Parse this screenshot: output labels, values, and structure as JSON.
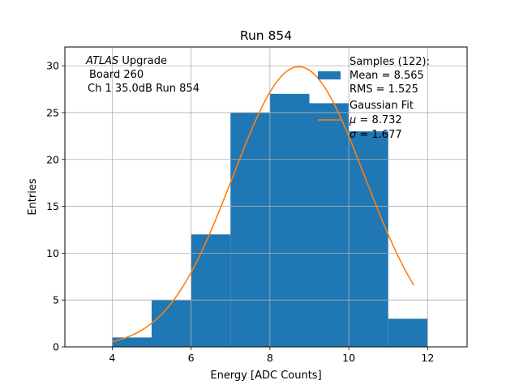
{
  "chart_data": {
    "type": "bar",
    "title": "Run 854",
    "xlabel": "Energy [ADC Counts]",
    "ylabel": "Entries",
    "xlim": [
      2.8,
      13.0
    ],
    "ylim": [
      0,
      32
    ],
    "xticks": [
      4,
      6,
      8,
      10,
      12
    ],
    "yticks": [
      0,
      5,
      10,
      15,
      20,
      25,
      30
    ],
    "grid": true,
    "bin_edges": [
      4,
      5,
      6,
      7,
      8,
      9,
      10,
      11,
      12
    ],
    "values": [
      1,
      5,
      12,
      25,
      27,
      26,
      23,
      3
    ],
    "series": [
      {
        "name": "Samples",
        "type": "histogram",
        "color": "#1f77b4"
      },
      {
        "name": "Gaussian Fit",
        "type": "line",
        "color": "#ff7f0e",
        "mu": 8.732,
        "sigma": 1.677,
        "amplitude": 29.9,
        "x_range": [
          4.0,
          11.65
        ]
      }
    ],
    "annotation": {
      "line1_italic": "ATLAS",
      "line1_rest": " Upgrade",
      "line2": "Board 260",
      "line3": "Ch 1 35.0dB  Run 854"
    },
    "legend": {
      "position": "top-right",
      "samples_title": "Samples (122):",
      "samples_mean": "Mean = 8.565",
      "samples_rms": "RMS = 1.525",
      "fit_title": "Gaussian Fit",
      "fit_mu_symbol": "μ",
      "fit_mu_value": " = 8.732",
      "fit_sigma_symbol": "σ",
      "fit_sigma_value": " = 1.677"
    }
  }
}
